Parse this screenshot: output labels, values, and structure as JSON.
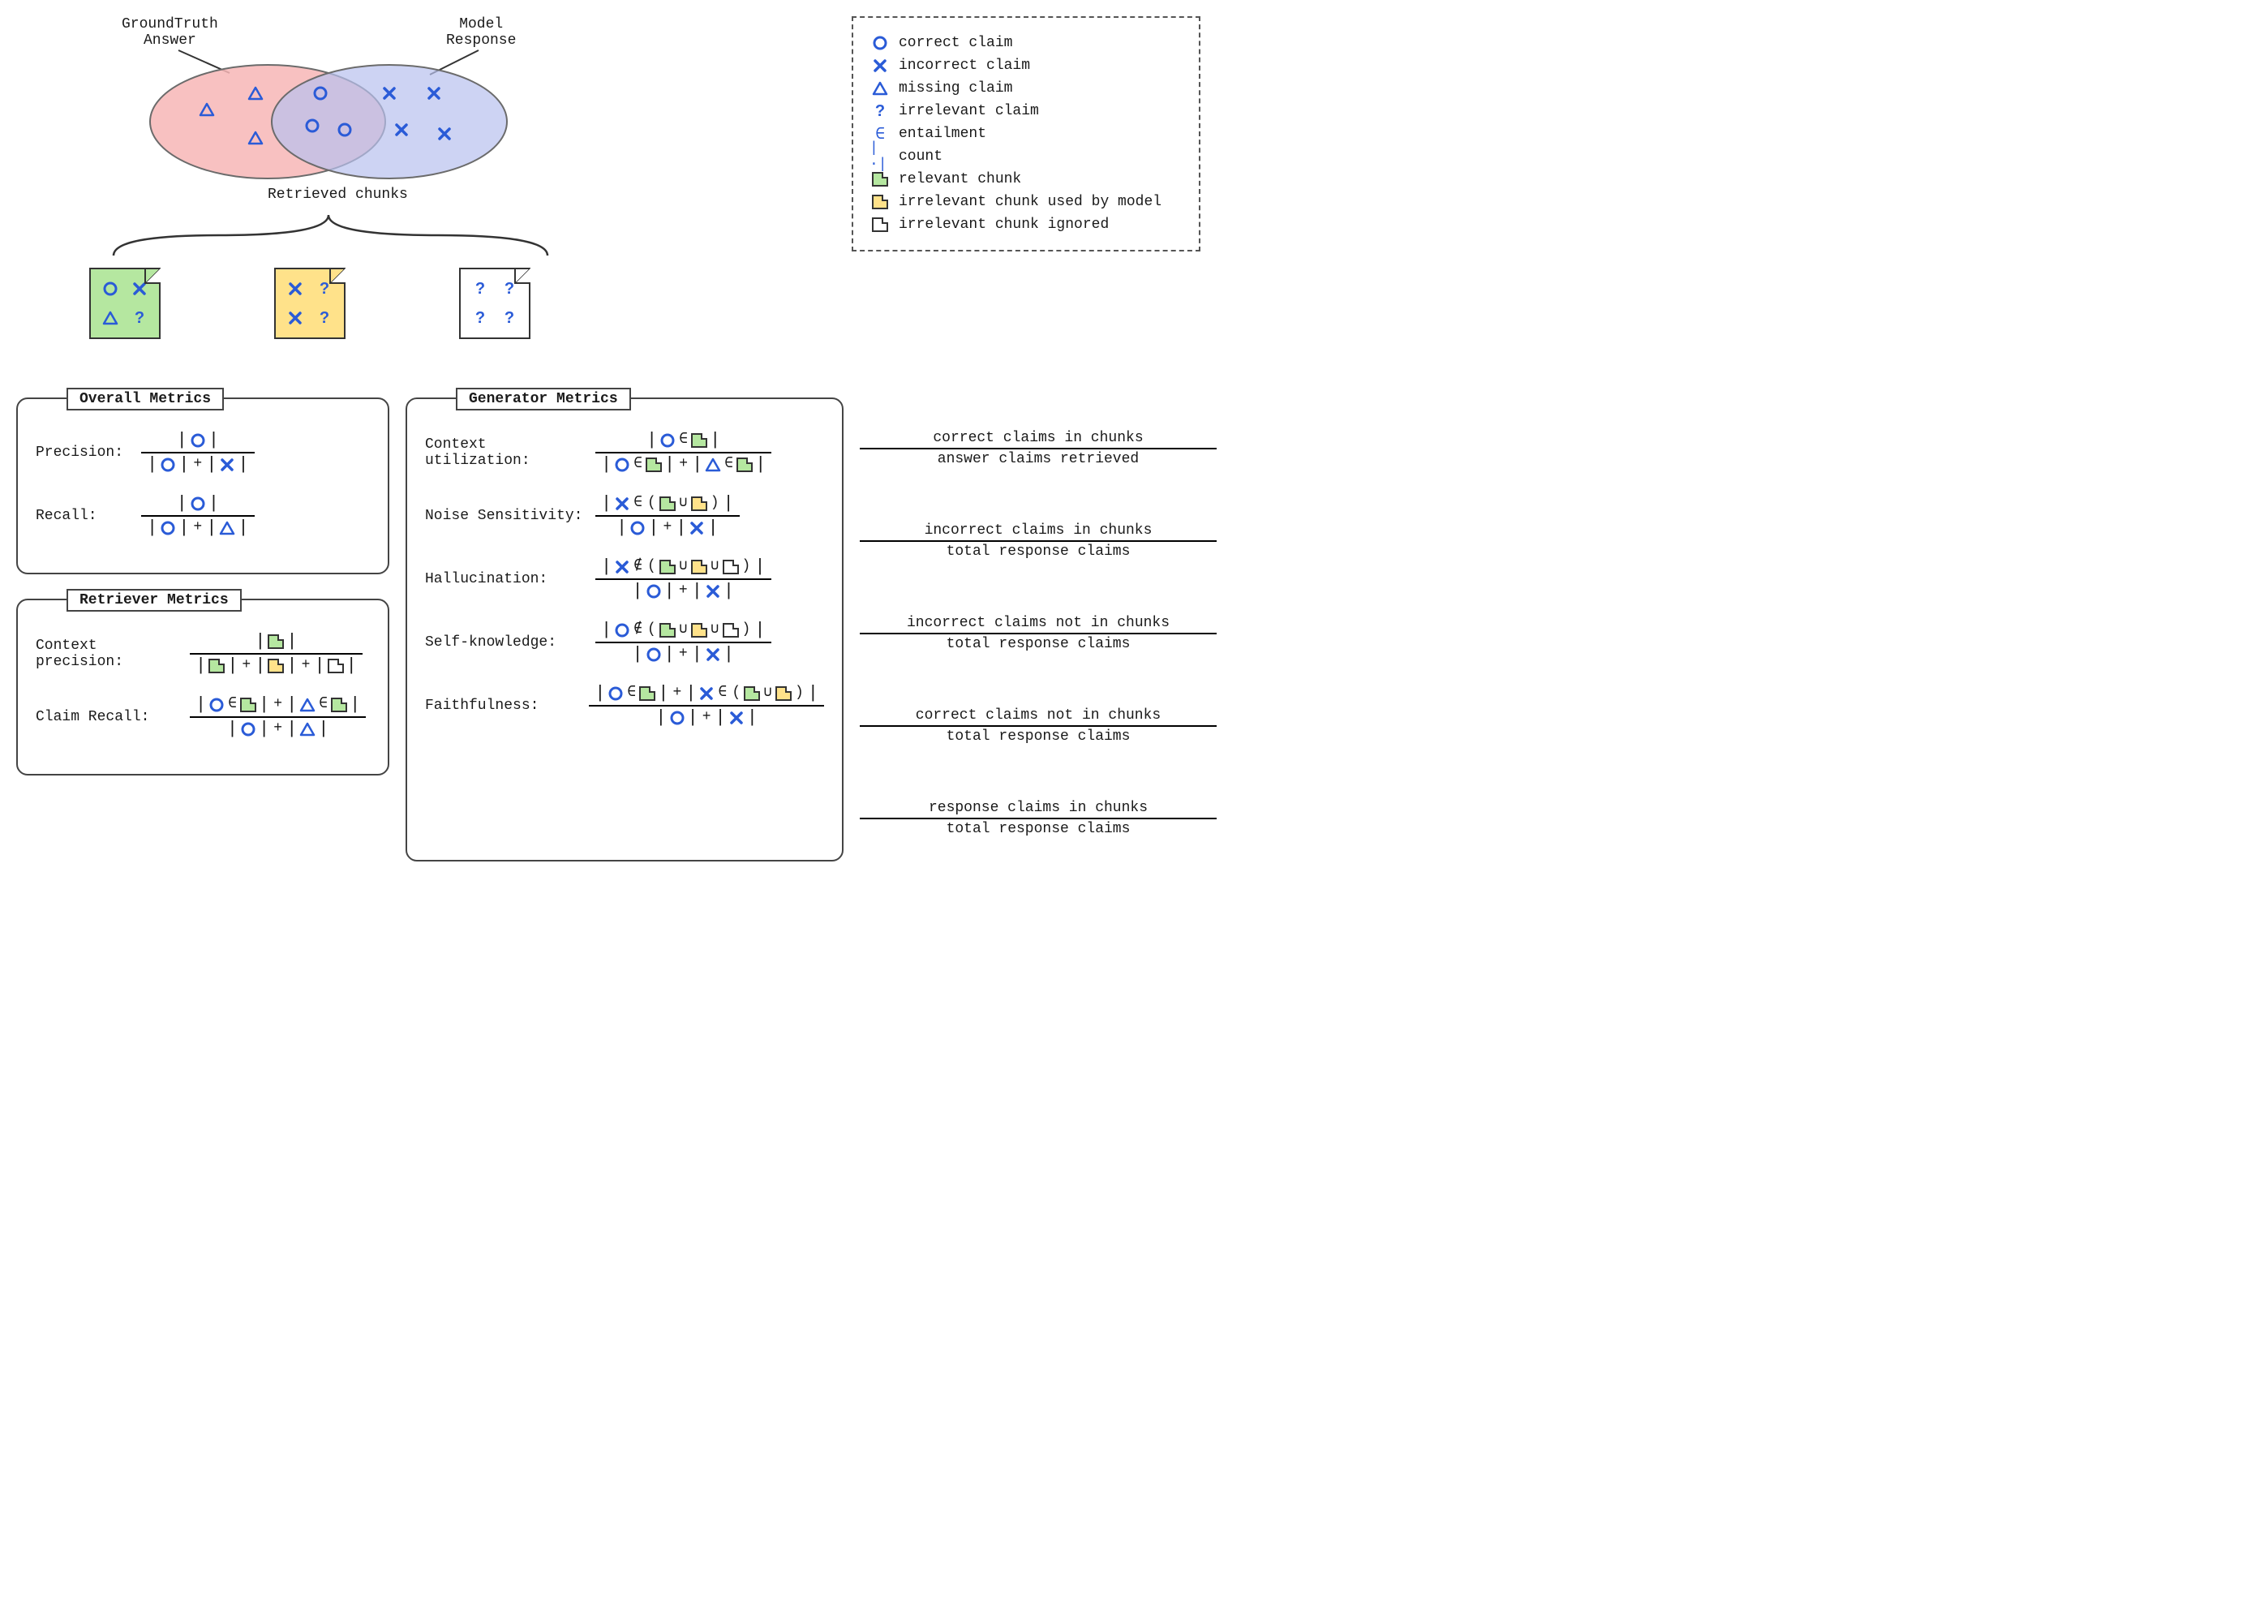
{
  "colors": {
    "accent": "#2a5bd7",
    "venn_left_fill": "#f7b6b6",
    "venn_right_fill": "#b8c0ee",
    "venn_stroke": "#6b6b6b",
    "chunk_green": "#b5e7a0",
    "chunk_yellow": "#ffe28a",
    "chunk_white": "#ffffff",
    "border": "#333333"
  },
  "venn": {
    "left_label": "GroundTruth\nAnswer",
    "right_label": "Model\nResponse",
    "chunks_label": "Retrieved chunks"
  },
  "legend": {
    "items": [
      {
        "sym": "circle",
        "text": "correct claim"
      },
      {
        "sym": "x",
        "text": "incorrect claim"
      },
      {
        "sym": "triangle",
        "text": "missing claim"
      },
      {
        "sym": "question",
        "text": "irrelevant claim"
      },
      {
        "sym": "in",
        "text": "entailment"
      },
      {
        "sym": "count",
        "text": "count"
      },
      {
        "sym": "chunk-green",
        "text": "relevant chunk"
      },
      {
        "sym": "chunk-yellow",
        "text": "irrelevant chunk used by model"
      },
      {
        "sym": "chunk-white",
        "text": "irrelevant chunk ignored"
      }
    ]
  },
  "panels": {
    "overall": {
      "title": "Overall Metrics",
      "metrics": [
        {
          "label": "Precision:",
          "num": [
            "|",
            "circle",
            "|"
          ],
          "den": [
            "|",
            "circle",
            "|",
            "+",
            "|",
            "x",
            "|"
          ]
        },
        {
          "label": "Recall:",
          "num": [
            "|",
            "circle",
            "|"
          ],
          "den": [
            "|",
            "circle",
            "|",
            "+",
            "|",
            "triangle",
            "|"
          ]
        }
      ]
    },
    "retriever": {
      "title": "Retriever Metrics",
      "metrics": [
        {
          "label": "Context precision:",
          "num": [
            "|",
            "chunk-green",
            "|"
          ],
          "den": [
            "|",
            "chunk-green",
            "|",
            "+",
            "|",
            "chunk-yellow",
            "|",
            "+",
            "|",
            "chunk-white",
            "|"
          ]
        },
        {
          "label": "Claim Recall:",
          "num": [
            "|",
            "circle",
            "∈",
            "chunk-green",
            "|",
            "+",
            "|",
            "triangle",
            "∈",
            "chunk-green",
            "|"
          ],
          "den": [
            "|",
            "circle",
            "|",
            "+",
            "|",
            "triangle",
            "|"
          ]
        }
      ]
    },
    "generator": {
      "title": "Generator Metrics",
      "metrics": [
        {
          "label": "Context utilization:",
          "num": [
            "|",
            "circle",
            "∈",
            "chunk-green",
            "|"
          ],
          "den": [
            "|",
            "circle",
            "∈",
            "chunk-green",
            "|",
            "+",
            "|",
            "triangle",
            "∈",
            "chunk-green",
            "|"
          ],
          "desc_num": "correct claims in chunks",
          "desc_den": "answer claims retrieved"
        },
        {
          "label": "Noise Sensitivity:",
          "num": [
            "|",
            "x",
            "∈",
            "(",
            "chunk-green",
            "∪",
            "chunk-yellow",
            ")",
            "|"
          ],
          "den": [
            "|",
            "circle",
            "|",
            "+",
            "|",
            "x",
            "|"
          ],
          "desc_num": "incorrect claims in chunks",
          "desc_den": "total response claims"
        },
        {
          "label": "Hallucination:",
          "num": [
            "|",
            "x",
            "∉",
            "(",
            "chunk-green",
            "∪",
            "chunk-yellow",
            "∪",
            "chunk-white",
            ")",
            "|"
          ],
          "den": [
            "|",
            "circle",
            "|",
            "+",
            "|",
            "x",
            "|"
          ],
          "desc_num": "incorrect claims not in chunks",
          "desc_den": "total response claims"
        },
        {
          "label": "Self-knowledge:",
          "num": [
            "|",
            "circle",
            "∉",
            "(",
            "chunk-green",
            "∪",
            "chunk-yellow",
            "∪",
            "chunk-white",
            ")",
            "|"
          ],
          "den": [
            "|",
            "circle",
            "|",
            "+",
            "|",
            "x",
            "|"
          ],
          "desc_num": "correct claims not in chunks",
          "desc_den": "total response claims"
        },
        {
          "label": "Faithfulness:",
          "num": [
            "|",
            "circle",
            "∈",
            "chunk-green",
            "|",
            "+",
            "|",
            "x",
            "∈",
            "(",
            "chunk-green",
            "∪",
            "chunk-yellow",
            ")",
            "|"
          ],
          "den": [
            "|",
            "circle",
            "|",
            "+",
            "|",
            "x",
            "|"
          ],
          "desc_num": "response claims in chunks",
          "desc_den": "total response claims"
        }
      ]
    }
  },
  "chunks": [
    {
      "fill": "green",
      "icons": [
        "circle",
        "x",
        "triangle",
        "question"
      ]
    },
    {
      "fill": "yellow",
      "icons": [
        "x",
        "question",
        "x",
        "question"
      ]
    },
    {
      "fill": "white",
      "icons": [
        "question",
        "question",
        "question",
        "question"
      ]
    }
  ]
}
